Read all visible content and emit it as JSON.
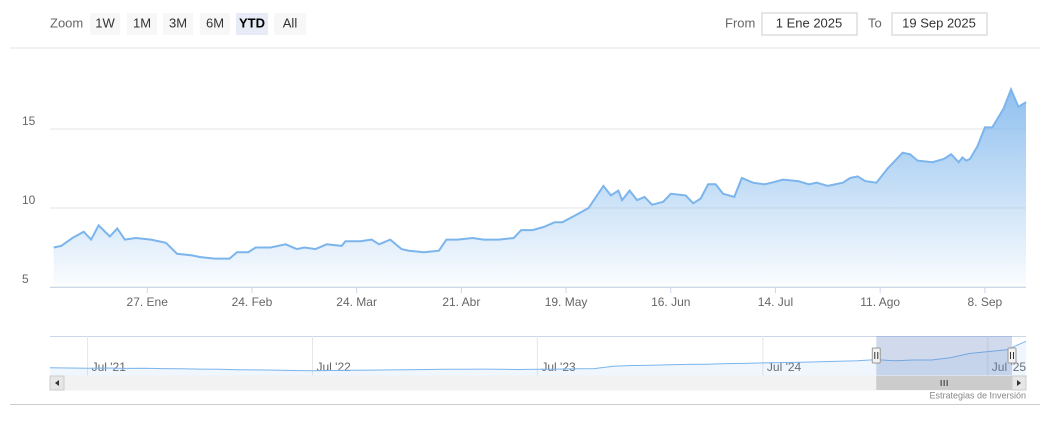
{
  "range_selector": {
    "zoom_label": "Zoom",
    "buttons": [
      "1W",
      "1M",
      "3M",
      "6M",
      "YTD",
      "All"
    ],
    "selected": "YTD",
    "from_label": "From",
    "from": "1 Ene 2025",
    "to_label": "To",
    "to": "19 Sep 2025"
  },
  "credits": "Estrategias de Inversión",
  "chart_data": [
    {
      "type": "area",
      "color": "#7cb5ec",
      "x": [
        "2025-01-02",
        "2025-01-04",
        "2025-01-07",
        "2025-01-10",
        "2025-01-12",
        "2025-01-14",
        "2025-01-17",
        "2025-01-19",
        "2025-01-21",
        "2025-01-24",
        "2025-01-28",
        "2025-02-01",
        "2025-02-04",
        "2025-02-08",
        "2025-02-10",
        "2025-02-14",
        "2025-02-18",
        "2025-02-20",
        "2025-02-23",
        "2025-02-25",
        "2025-03-01",
        "2025-03-05",
        "2025-03-08",
        "2025-03-10",
        "2025-03-13",
        "2025-03-16",
        "2025-03-20",
        "2025-03-21",
        "2025-03-25",
        "2025-03-28",
        "2025-03-30",
        "2025-04-02",
        "2025-04-05",
        "2025-04-07",
        "2025-04-11",
        "2025-04-15",
        "2025-04-17",
        "2025-04-20",
        "2025-04-24",
        "2025-04-27",
        "2025-05-01",
        "2025-05-05",
        "2025-05-07",
        "2025-05-10",
        "2025-05-13",
        "2025-05-16",
        "2025-05-18",
        "2025-05-22",
        "2025-05-25",
        "2025-05-27",
        "2025-05-29",
        "2025-05-31",
        "2025-06-02",
        "2025-06-03",
        "2025-06-05",
        "2025-06-07",
        "2025-06-09",
        "2025-06-11",
        "2025-06-14",
        "2025-06-16",
        "2025-06-20",
        "2025-06-22",
        "2025-06-24",
        "2025-06-26",
        "2025-06-28",
        "2025-06-30",
        "2025-07-03",
        "2025-07-05",
        "2025-07-08",
        "2025-07-11",
        "2025-07-13",
        "2025-07-16",
        "2025-07-20",
        "2025-07-23",
        "2025-07-25",
        "2025-07-28",
        "2025-08-01",
        "2025-08-03",
        "2025-08-05",
        "2025-08-07",
        "2025-08-10",
        "2025-08-13",
        "2025-08-17",
        "2025-08-19",
        "2025-08-21",
        "2025-08-25",
        "2025-08-28",
        "2025-08-30",
        "2025-09-01",
        "2025-09-02",
        "2025-09-03",
        "2025-09-04",
        "2025-09-06",
        "2025-09-08",
        "2025-09-10",
        "2025-09-13",
        "2025-09-15",
        "2025-09-17",
        "2025-09-19"
      ],
      "values": [
        7.5,
        7.6,
        8.1,
        8.5,
        8.0,
        8.9,
        8.2,
        8.7,
        8.0,
        8.1,
        8.0,
        7.8,
        7.1,
        7.0,
        6.9,
        6.8,
        6.8,
        7.2,
        7.2,
        7.5,
        7.5,
        7.7,
        7.4,
        7.5,
        7.4,
        7.7,
        7.6,
        7.9,
        7.9,
        8.0,
        7.7,
        8.0,
        7.4,
        7.3,
        7.2,
        7.3,
        8.0,
        8.0,
        8.1,
        8.0,
        8.0,
        8.1,
        8.6,
        8.6,
        8.8,
        9.1,
        9.1,
        9.6,
        10.0,
        10.7,
        11.4,
        10.8,
        11.1,
        10.5,
        11.1,
        10.5,
        10.7,
        10.2,
        10.4,
        10.9,
        10.8,
        10.3,
        10.6,
        11.5,
        11.5,
        10.9,
        10.7,
        11.9,
        11.6,
        11.5,
        11.6,
        11.8,
        11.7,
        11.5,
        11.6,
        11.4,
        11.6,
        11.9,
        12.0,
        11.7,
        11.6,
        12.5,
        13.5,
        13.4,
        13.0,
        12.9,
        13.1,
        13.4,
        12.9,
        13.2,
        13.0,
        13.1,
        13.9,
        15.1,
        15.1,
        16.3,
        17.5,
        16.4,
        16.7
      ],
      "xlim": [
        "2025-01-01",
        "2025-09-19"
      ],
      "xticks": [
        {
          "value": "2025-01-27",
          "label": "27. Ene"
        },
        {
          "value": "2025-02-24",
          "label": "24. Feb"
        },
        {
          "value": "2025-03-24",
          "label": "24. Mar"
        },
        {
          "value": "2025-04-21",
          "label": "21. Abr"
        },
        {
          "value": "2025-05-19",
          "label": "19. May"
        },
        {
          "value": "2025-06-16",
          "label": "16. Jun"
        },
        {
          "value": "2025-07-14",
          "label": "14. Jul"
        },
        {
          "value": "2025-08-11",
          "label": "11. Ago"
        },
        {
          "value": "2025-09-08",
          "label": "8. Sep"
        }
      ],
      "ylim": [
        5,
        20
      ],
      "yticks": [
        5,
        10,
        15
      ],
      "grid": true
    },
    {
      "type": "navigator",
      "color": "#7cb5ec",
      "x": [
        "2021-05",
        "2021-06",
        "2021-07",
        "2021-08",
        "2021-09",
        "2021-10",
        "2021-11",
        "2021-12",
        "2022-01",
        "2022-02",
        "2022-03",
        "2022-04",
        "2022-05",
        "2022-06",
        "2022-07",
        "2022-08",
        "2022-09",
        "2022-10",
        "2022-11",
        "2022-12",
        "2023-01",
        "2023-02",
        "2023-03",
        "2023-04",
        "2023-05",
        "2023-06",
        "2023-07",
        "2023-08",
        "2023-09",
        "2023-10",
        "2023-11",
        "2023-12",
        "2024-01",
        "2024-02",
        "2024-03",
        "2024-04",
        "2024-05",
        "2024-06",
        "2024-07",
        "2024-08",
        "2024-09",
        "2024-10",
        "2024-11",
        "2024-12",
        "2025-01",
        "2025-02",
        "2025-03",
        "2025-04",
        "2025-05",
        "2025-06",
        "2025-07",
        "2025-08",
        "2025-09"
      ],
      "values": [
        3.9,
        3.8,
        3.7,
        3.8,
        3.6,
        3.7,
        3.5,
        3.4,
        3.3,
        3.2,
        3.0,
        2.9,
        2.8,
        2.6,
        2.5,
        2.6,
        2.7,
        2.8,
        2.9,
        3.0,
        3.1,
        3.2,
        3.2,
        3.3,
        3.2,
        3.1,
        3.2,
        3.3,
        3.4,
        3.5,
        4.6,
        5.0,
        5.1,
        5.3,
        5.5,
        5.6,
        5.9,
        6.0,
        6.2,
        6.4,
        6.5,
        6.8,
        7.0,
        7.2,
        7.8,
        7.2,
        7.6,
        7.6,
        8.7,
        10.7,
        11.6,
        12.5,
        16.5
      ],
      "xlim": [
        "2021-05",
        "2025-09"
      ],
      "xticks": [
        {
          "value": "2021-07",
          "label": "Jul '21"
        },
        {
          "value": "2022-07",
          "label": "Jul '22"
        },
        {
          "value": "2023-07",
          "label": "Jul '23"
        },
        {
          "value": "2024-07",
          "label": "Jul '24"
        },
        {
          "value": "2025-07",
          "label": "Jul '25"
        }
      ],
      "ylim": [
        0,
        19
      ]
    }
  ]
}
